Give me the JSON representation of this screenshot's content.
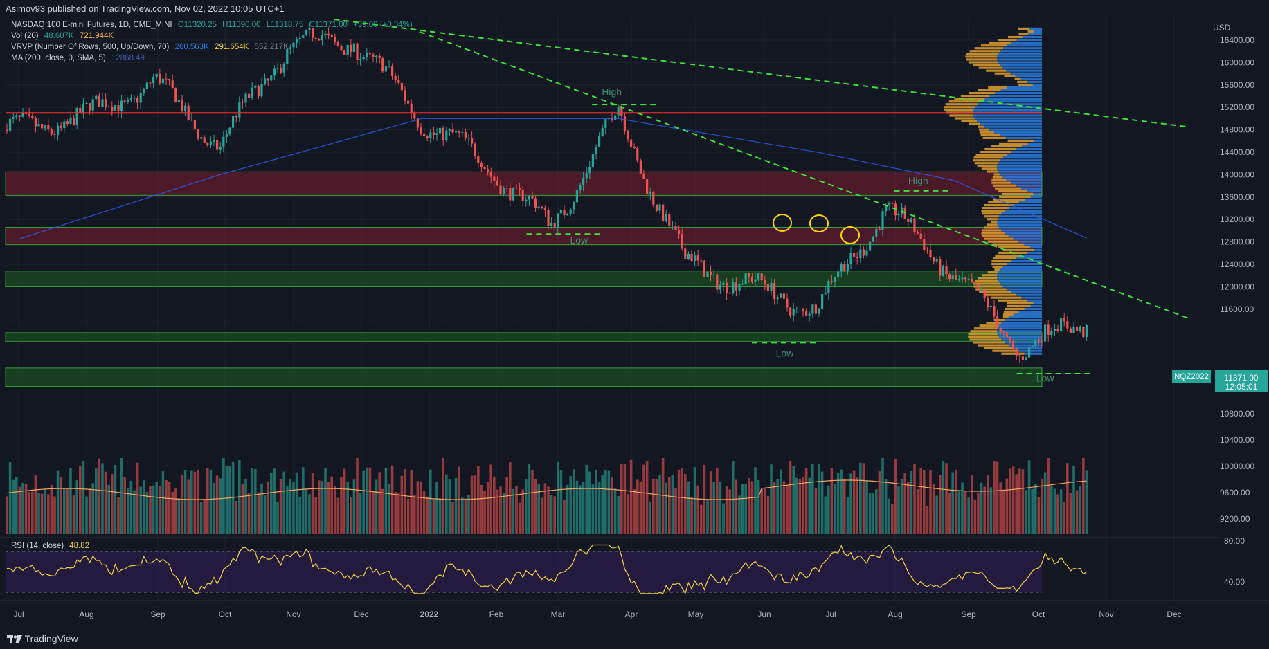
{
  "header": {
    "publisher": "Asimov93 published on TradingView.com, Nov 02, 2022 10:05 UTC+1"
  },
  "legend": {
    "symbol": "NASDAQ 100 E-mini Futures, 1D, CME_MINI",
    "ohlc": {
      "o": "O11320.25",
      "h": "H11390.00",
      "l": "L11318.75",
      "c": "C11371.00",
      "chg": "+39.00 (+0.34%)"
    },
    "vol": {
      "label": "Vol (20)",
      "v1": "48.607K",
      "v2": "721.944K"
    },
    "vrvp": {
      "label": "VRVP (Number Of Rows, 500, Up/Down, 70)",
      "v1": "260.563K",
      "v2": "291.654K",
      "v3": "552.217K"
    },
    "ma": {
      "label": "MA (200, close, 0, SMA, 5)",
      "v1": "12868.49"
    },
    "rsi": {
      "label": "RSI (14, close)",
      "v1": "48.82"
    }
  },
  "price_axis": {
    "currency": "USD",
    "ticks": [
      "16400.00",
      "16000.00",
      "15600.00",
      "15200.00",
      "14800.00",
      "14400.00",
      "14000.00",
      "13600.00",
      "13200.00",
      "12800.00",
      "12400.00",
      "12000.00",
      "11600.00",
      "10800.00",
      "10400.00",
      "10000.00",
      "9600.00",
      "9200.00"
    ],
    "rsi_ticks": [
      "80.00",
      "40.00"
    ],
    "symbol_badge": "NQZ2022",
    "last_price": "11371.00",
    "countdown": "12:05:01"
  },
  "time_axis": {
    "labels": [
      "Jul",
      "Aug",
      "Sep",
      "Oct",
      "Nov",
      "Dec",
      "2022",
      "Feb",
      "Mar",
      "Apr",
      "May",
      "Jun",
      "Jul",
      "Aug",
      "Sep",
      "Oct",
      "Nov",
      "Dec"
    ]
  },
  "annotations": [
    {
      "text": "High",
      "x": "2022-03-29",
      "y": 15420
    },
    {
      "text": "Low",
      "x": "2022-03-14",
      "y": 12770
    },
    {
      "text": "High",
      "x": "2022-08-16",
      "y": 13830
    },
    {
      "text": "Low",
      "x": "2022-06-16",
      "y": 10750
    },
    {
      "text": "Low",
      "x": "2022-10-13",
      "y": 10310
    }
  ],
  "colors": {
    "up": "#26a69a",
    "down": "#ef5350",
    "ma": "#2962ff",
    "resistance": "#ff2e2e",
    "trendline": "#39e639",
    "rsi": "#f5d142",
    "volume_ma": "#f4a460",
    "zone_red": "#7a1c2c",
    "zone_green": "#1b5e20"
  },
  "chart_data": {
    "type": "candlestick",
    "title": "NASDAQ 100 E-mini Futures, 1D, CME_MINI",
    "ylim": [
      9000,
      16800
    ],
    "last_price": 11371.0,
    "monthly_path": [
      {
        "month": "2021-07",
        "price": 14800
      },
      {
        "month": "2021-08",
        "price": 15050
      },
      {
        "month": "2021-09",
        "price": 15650
      },
      {
        "month": "2021-10",
        "price": 14500
      },
      {
        "month": "2021-11",
        "price": 16300
      },
      {
        "month": "2021-12",
        "price": 16400
      },
      {
        "month": "2022-01",
        "price": 15000
      },
      {
        "month": "2022-02",
        "price": 14150
      },
      {
        "month": "2022-03",
        "price": 13050
      },
      {
        "month": "2022-04",
        "price": 15100
      },
      {
        "month": "2022-05",
        "price": 12450
      },
      {
        "month": "2022-06",
        "price": 12000
      },
      {
        "month": "2022-07",
        "price": 11600
      },
      {
        "month": "2022-08",
        "price": 13400
      },
      {
        "month": "2022-09",
        "price": 12250
      },
      {
        "month": "2022-10",
        "price": 10900
      },
      {
        "month": "2022-11",
        "price": 11371
      }
    ],
    "horizontal_levels": [
      {
        "name": "resistance",
        "price": 15100
      }
    ],
    "zones": [
      {
        "type": "red",
        "from": 13630,
        "to": 14050
      },
      {
        "type": "red",
        "from": 12750,
        "to": 13060
      },
      {
        "type": "green",
        "from": 12000,
        "to": 12280
      },
      {
        "type": "green",
        "from": 11020,
        "to": 11180
      },
      {
        "type": "green",
        "from": 10220,
        "to": 10550
      }
    ],
    "trendlines": [
      {
        "from": {
          "x": "2021-11-22",
          "y": 16770
        },
        "to": {
          "x": "2022-12-18",
          "y": 14850
        }
      },
      {
        "from": {
          "x": "2021-12-27",
          "y": 16610
        },
        "to": {
          "x": "2022-12-18",
          "y": 11430
        }
      }
    ],
    "support_lines": [
      {
        "price": 15250,
        "from": "2022-03-20",
        "to": "2022-04-20"
      },
      {
        "price": 12940,
        "from": "2022-02-18",
        "to": "2022-03-25"
      },
      {
        "price": 13710,
        "from": "2022-08-05",
        "to": "2022-08-30"
      },
      {
        "price": 11000,
        "from": "2022-06-01",
        "to": "2022-07-01"
      },
      {
        "price": 10450,
        "from": "2022-09-30",
        "to": "2022-11-03"
      }
    ],
    "ma200_path": [
      {
        "month": "2021-07",
        "price": 12850
      },
      {
        "month": "2021-10",
        "price": 14000
      },
      {
        "month": "2022-01",
        "price": 15000
      },
      {
        "month": "2022-04",
        "price": 15000
      },
      {
        "month": "2022-07",
        "price": 14400
      },
      {
        "month": "2022-09",
        "price": 13900
      },
      {
        "month": "2022-11",
        "price": 12868
      }
    ],
    "rsi": {
      "current": 48.82,
      "upper": 70,
      "lower": 30
    }
  },
  "footer": {
    "logo_text": "TradingView"
  }
}
